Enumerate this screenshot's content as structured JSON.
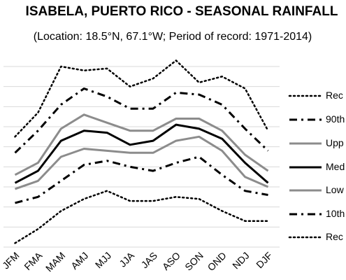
{
  "chart_data": {
    "type": "line",
    "title": "ISABELA, PUERTO RICO - SEASONAL RAINFALL",
    "subtitle": "(Location: 18.5°N, 67.1°W; Period of record: 1971-2014)",
    "xlabel": "",
    "ylabel": "",
    "categories": [
      "JFM",
      "FMA",
      "MAM",
      "AMJ",
      "MJJ",
      "JJA",
      "JAS",
      "ASO",
      "SON",
      "OND",
      "NDJ",
      "DJF"
    ],
    "ylim": [
      0,
      9
    ],
    "y_tick_labels_shown": false,
    "grid": true,
    "legend_position": "right",
    "series": [
      {
        "name": "Rec",
        "style": "dotted",
        "color": "#000000",
        "values": [
          5.5,
          6.7,
          9.0,
          8.8,
          8.9,
          8.0,
          8.4,
          9.3,
          8.2,
          8.5,
          7.9,
          5.8
        ]
      },
      {
        "name": "90th",
        "style": "dashdot",
        "color": "#000000",
        "values": [
          4.7,
          5.8,
          7.1,
          7.9,
          7.5,
          6.9,
          6.9,
          7.7,
          7.6,
          7.1,
          5.9,
          4.8
        ]
      },
      {
        "name": "Upp",
        "style": "solid",
        "color": "#8c8c8c",
        "values": [
          3.6,
          4.2,
          5.9,
          6.6,
          6.2,
          5.8,
          5.8,
          6.4,
          6.4,
          5.8,
          4.6,
          3.8
        ]
      },
      {
        "name": "Med",
        "style": "solid",
        "color": "#000000",
        "values": [
          3.2,
          3.8,
          5.3,
          5.8,
          5.7,
          5.1,
          5.3,
          6.1,
          5.9,
          5.4,
          4.2,
          3.2
        ]
      },
      {
        "name": "Low",
        "style": "solid",
        "color": "#8c8c8c",
        "values": [
          2.9,
          3.3,
          4.5,
          4.9,
          4.8,
          4.7,
          4.7,
          5.3,
          5.5,
          4.8,
          3.5,
          3.0
        ]
      },
      {
        "name": "10th",
        "style": "dashdot",
        "color": "#000000",
        "values": [
          2.2,
          2.5,
          3.3,
          4.1,
          4.3,
          4.0,
          3.8,
          4.2,
          4.5,
          3.6,
          2.8,
          2.6
        ]
      },
      {
        "name": "Rec",
        "style": "dotted",
        "color": "#000000",
        "values": [
          0.2,
          0.9,
          1.8,
          2.4,
          2.8,
          2.3,
          2.3,
          2.5,
          2.4,
          1.8,
          1.3,
          1.3
        ]
      }
    ]
  }
}
